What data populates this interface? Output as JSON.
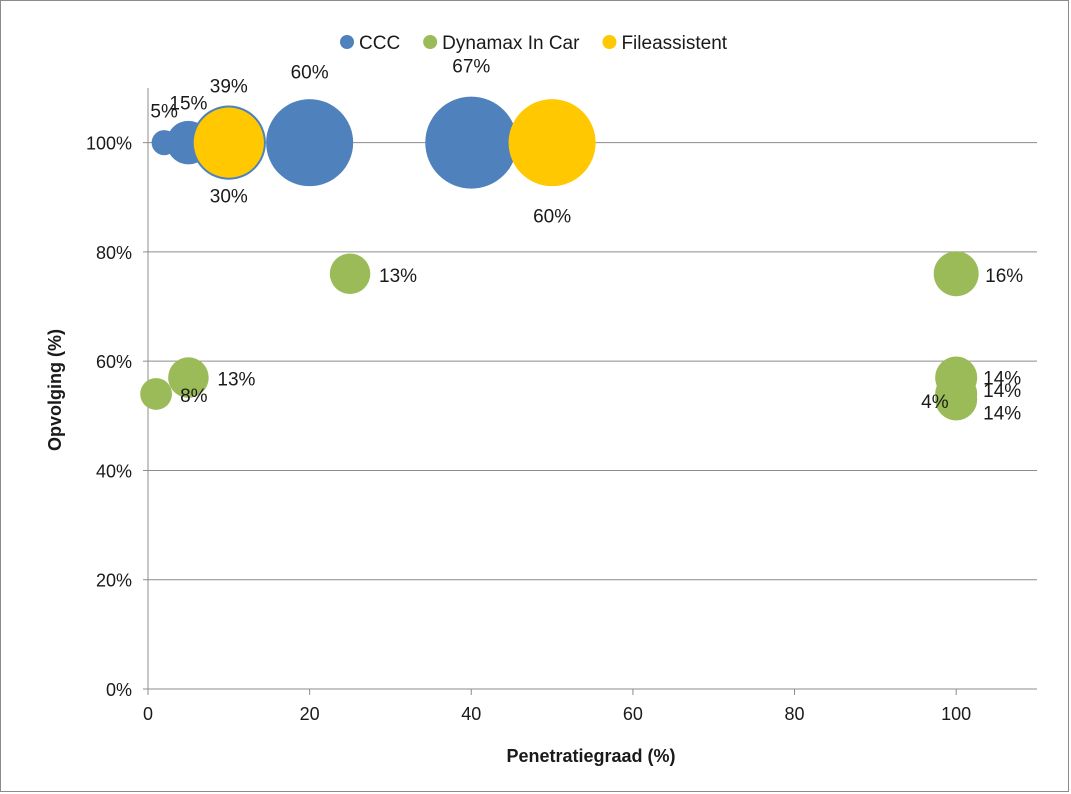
{
  "chart_data": {
    "type": "bubble",
    "title": "",
    "xlabel": "Penetratiegraad (%)",
    "ylabel": "Opvolging (%)",
    "xlim": [
      0,
      110
    ],
    "ylim": [
      0,
      110
    ],
    "x_ticks": [
      0,
      20,
      40,
      60,
      80,
      100
    ],
    "x_tick_labels": [
      "0",
      "20",
      "40",
      "60",
      "80",
      "100"
    ],
    "y_ticks": [
      0,
      20,
      40,
      60,
      80,
      100
    ],
    "y_tick_labels": [
      "0%",
      "20%",
      "40%",
      "60%",
      "80%",
      "100%"
    ],
    "grid": "horizontal",
    "legend_position": "top",
    "series": [
      {
        "name": "CCC",
        "color": "#4f81bd",
        "points": [
          {
            "x": 2,
            "y": 100,
            "size": 5,
            "label": "5%"
          },
          {
            "x": 5,
            "y": 100,
            "size": 15,
            "label": "15%"
          },
          {
            "x": 10,
            "y": 100,
            "size": 30,
            "label": "30%"
          },
          {
            "x": 20,
            "y": 100,
            "size": 60,
            "label": "60%"
          },
          {
            "x": 40,
            "y": 100,
            "size": 67,
            "label": "67%"
          }
        ]
      },
      {
        "name": "Dynamax In Car",
        "color": "#9bbb59",
        "points": [
          {
            "x": 1,
            "y": 54,
            "size": 8,
            "label": "8%"
          },
          {
            "x": 5,
            "y": 57,
            "size": 13,
            "label": "13%"
          },
          {
            "x": 25,
            "y": 76,
            "size": 13,
            "label": "13%"
          },
          {
            "x": 100,
            "y": 76,
            "size": 16,
            "label": "16%"
          },
          {
            "x": 100,
            "y": 57,
            "size": 14,
            "label": "14%"
          },
          {
            "x": 100,
            "y": 54,
            "size": 4,
            "label": "4%"
          },
          {
            "x": 100,
            "y": 54,
            "size": 14,
            "label": "14%"
          },
          {
            "x": 100,
            "y": 53,
            "size": 14,
            "label": "14%"
          }
        ]
      },
      {
        "name": "Fileassistent",
        "color": "#ffc800",
        "points": [
          {
            "x": 10,
            "y": 100,
            "size": 39,
            "label": "39%"
          },
          {
            "x": 50,
            "y": 100,
            "size": 60,
            "label": "60%"
          }
        ]
      }
    ]
  }
}
